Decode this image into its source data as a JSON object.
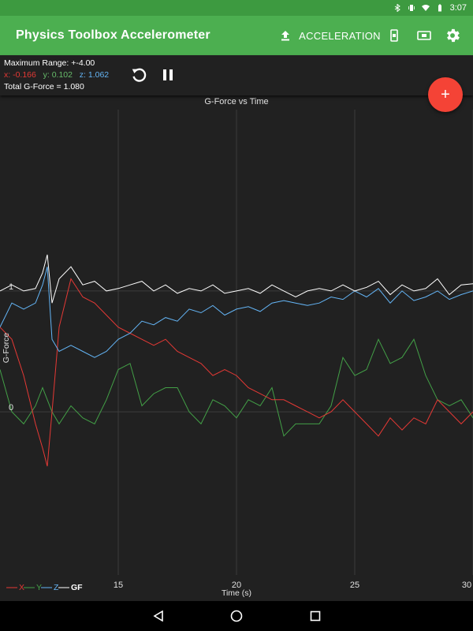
{
  "status_bar": {
    "time": "3:07",
    "icons": [
      "bluetooth-icon",
      "vibrate-icon",
      "wifi-icon",
      "battery-icon"
    ]
  },
  "app_bar": {
    "title": "Physics Toolbox Accelerometer",
    "mode_label": "ACCELERATION",
    "actions": [
      "upload-icon",
      "phone-orientation-icon",
      "screen-icon",
      "gear-icon"
    ]
  },
  "info": {
    "max_range": "Maximum Range: +-4.00",
    "x": "x: -0.166",
    "y": "y: 0.102",
    "z": "z: 1.062",
    "total": "Total G-Force = 1.080"
  },
  "fab": {
    "label": "+"
  },
  "colors": {
    "appbar": "#4caf50",
    "statusbar": "#3d9a40",
    "x": "#e53935",
    "y": "#43a047",
    "z": "#64b5f6",
    "gf": "#ffffff",
    "fab": "#f44336"
  },
  "chart_data": {
    "type": "line",
    "title": "G-Force vs Time",
    "xlabel": "Time (s)",
    "ylabel": "G-Force",
    "xlim": [
      10,
      30
    ],
    "ylim": [
      -1.35,
      2.5
    ],
    "x_ticks": [
      "15",
      "20",
      "25",
      "30"
    ],
    "y_ticks": [
      "1",
      "0"
    ],
    "legend": [
      "X",
      "Y",
      "Z",
      "GF"
    ],
    "legend_position": "bottom-left",
    "grid": true,
    "x": [
      10.0,
      10.5,
      11.0,
      11.5,
      11.8,
      12.0,
      12.2,
      12.5,
      13.0,
      13.5,
      14.0,
      14.5,
      15.0,
      15.5,
      16.0,
      16.5,
      17.0,
      17.5,
      18.0,
      18.5,
      19.0,
      19.5,
      20.0,
      20.5,
      21.0,
      21.5,
      22.0,
      22.5,
      23.0,
      23.5,
      24.0,
      24.5,
      25.0,
      25.5,
      26.0,
      26.5,
      27.0,
      27.5,
      28.0,
      28.5,
      29.0,
      29.5,
      30.0
    ],
    "series": [
      {
        "name": "X",
        "values": [
          0.7,
          0.6,
          0.3,
          -0.1,
          -0.3,
          -0.45,
          0.0,
          0.7,
          1.1,
          0.95,
          0.9,
          0.8,
          0.7,
          0.65,
          0.6,
          0.55,
          0.6,
          0.5,
          0.45,
          0.4,
          0.3,
          0.35,
          0.3,
          0.2,
          0.15,
          0.1,
          0.1,
          0.05,
          0.0,
          -0.05,
          0.0,
          0.1,
          0.0,
          -0.1,
          -0.2,
          -0.05,
          -0.15,
          -0.05,
          -0.1,
          0.1,
          0.0,
          -0.1,
          0.0
        ]
      },
      {
        "name": "Y",
        "values": [
          0.35,
          0.0,
          -0.1,
          0.05,
          0.2,
          0.1,
          0.0,
          -0.1,
          0.05,
          -0.05,
          -0.1,
          0.1,
          0.35,
          0.4,
          0.05,
          0.15,
          0.2,
          0.2,
          0.0,
          -0.1,
          0.1,
          0.05,
          -0.05,
          0.1,
          0.05,
          0.2,
          -0.2,
          -0.1,
          -0.1,
          -0.1,
          0.05,
          0.45,
          0.3,
          0.35,
          0.6,
          0.4,
          0.45,
          0.6,
          0.3,
          0.1,
          0.05,
          0.1,
          -0.05
        ]
      },
      {
        "name": "Z",
        "values": [
          0.7,
          0.9,
          0.85,
          0.9,
          1.05,
          1.2,
          0.6,
          0.5,
          0.55,
          0.5,
          0.45,
          0.5,
          0.6,
          0.65,
          0.75,
          0.72,
          0.78,
          0.75,
          0.85,
          0.82,
          0.88,
          0.8,
          0.85,
          0.87,
          0.83,
          0.9,
          0.92,
          0.9,
          0.88,
          0.9,
          0.95,
          0.93,
          1.0,
          0.95,
          1.02,
          0.9,
          1.0,
          0.92,
          0.95,
          1.0,
          0.93,
          0.97,
          1.0
        ]
      },
      {
        "name": "GF",
        "values": [
          1.0,
          1.05,
          1.0,
          1.02,
          1.15,
          1.3,
          0.9,
          1.1,
          1.2,
          1.05,
          1.08,
          1.0,
          1.02,
          1.05,
          1.08,
          1.0,
          1.05,
          0.98,
          1.02,
          1.0,
          1.05,
          0.98,
          1.0,
          1.02,
          0.98,
          1.05,
          1.0,
          0.95,
          1.0,
          1.02,
          1.0,
          1.05,
          1.0,
          1.03,
          1.08,
          0.97,
          1.05,
          1.0,
          1.02,
          1.1,
          0.97,
          1.05,
          1.06
        ]
      }
    ]
  },
  "nav_bar": {
    "buttons": [
      "back-icon",
      "home-icon",
      "recents-icon"
    ]
  }
}
